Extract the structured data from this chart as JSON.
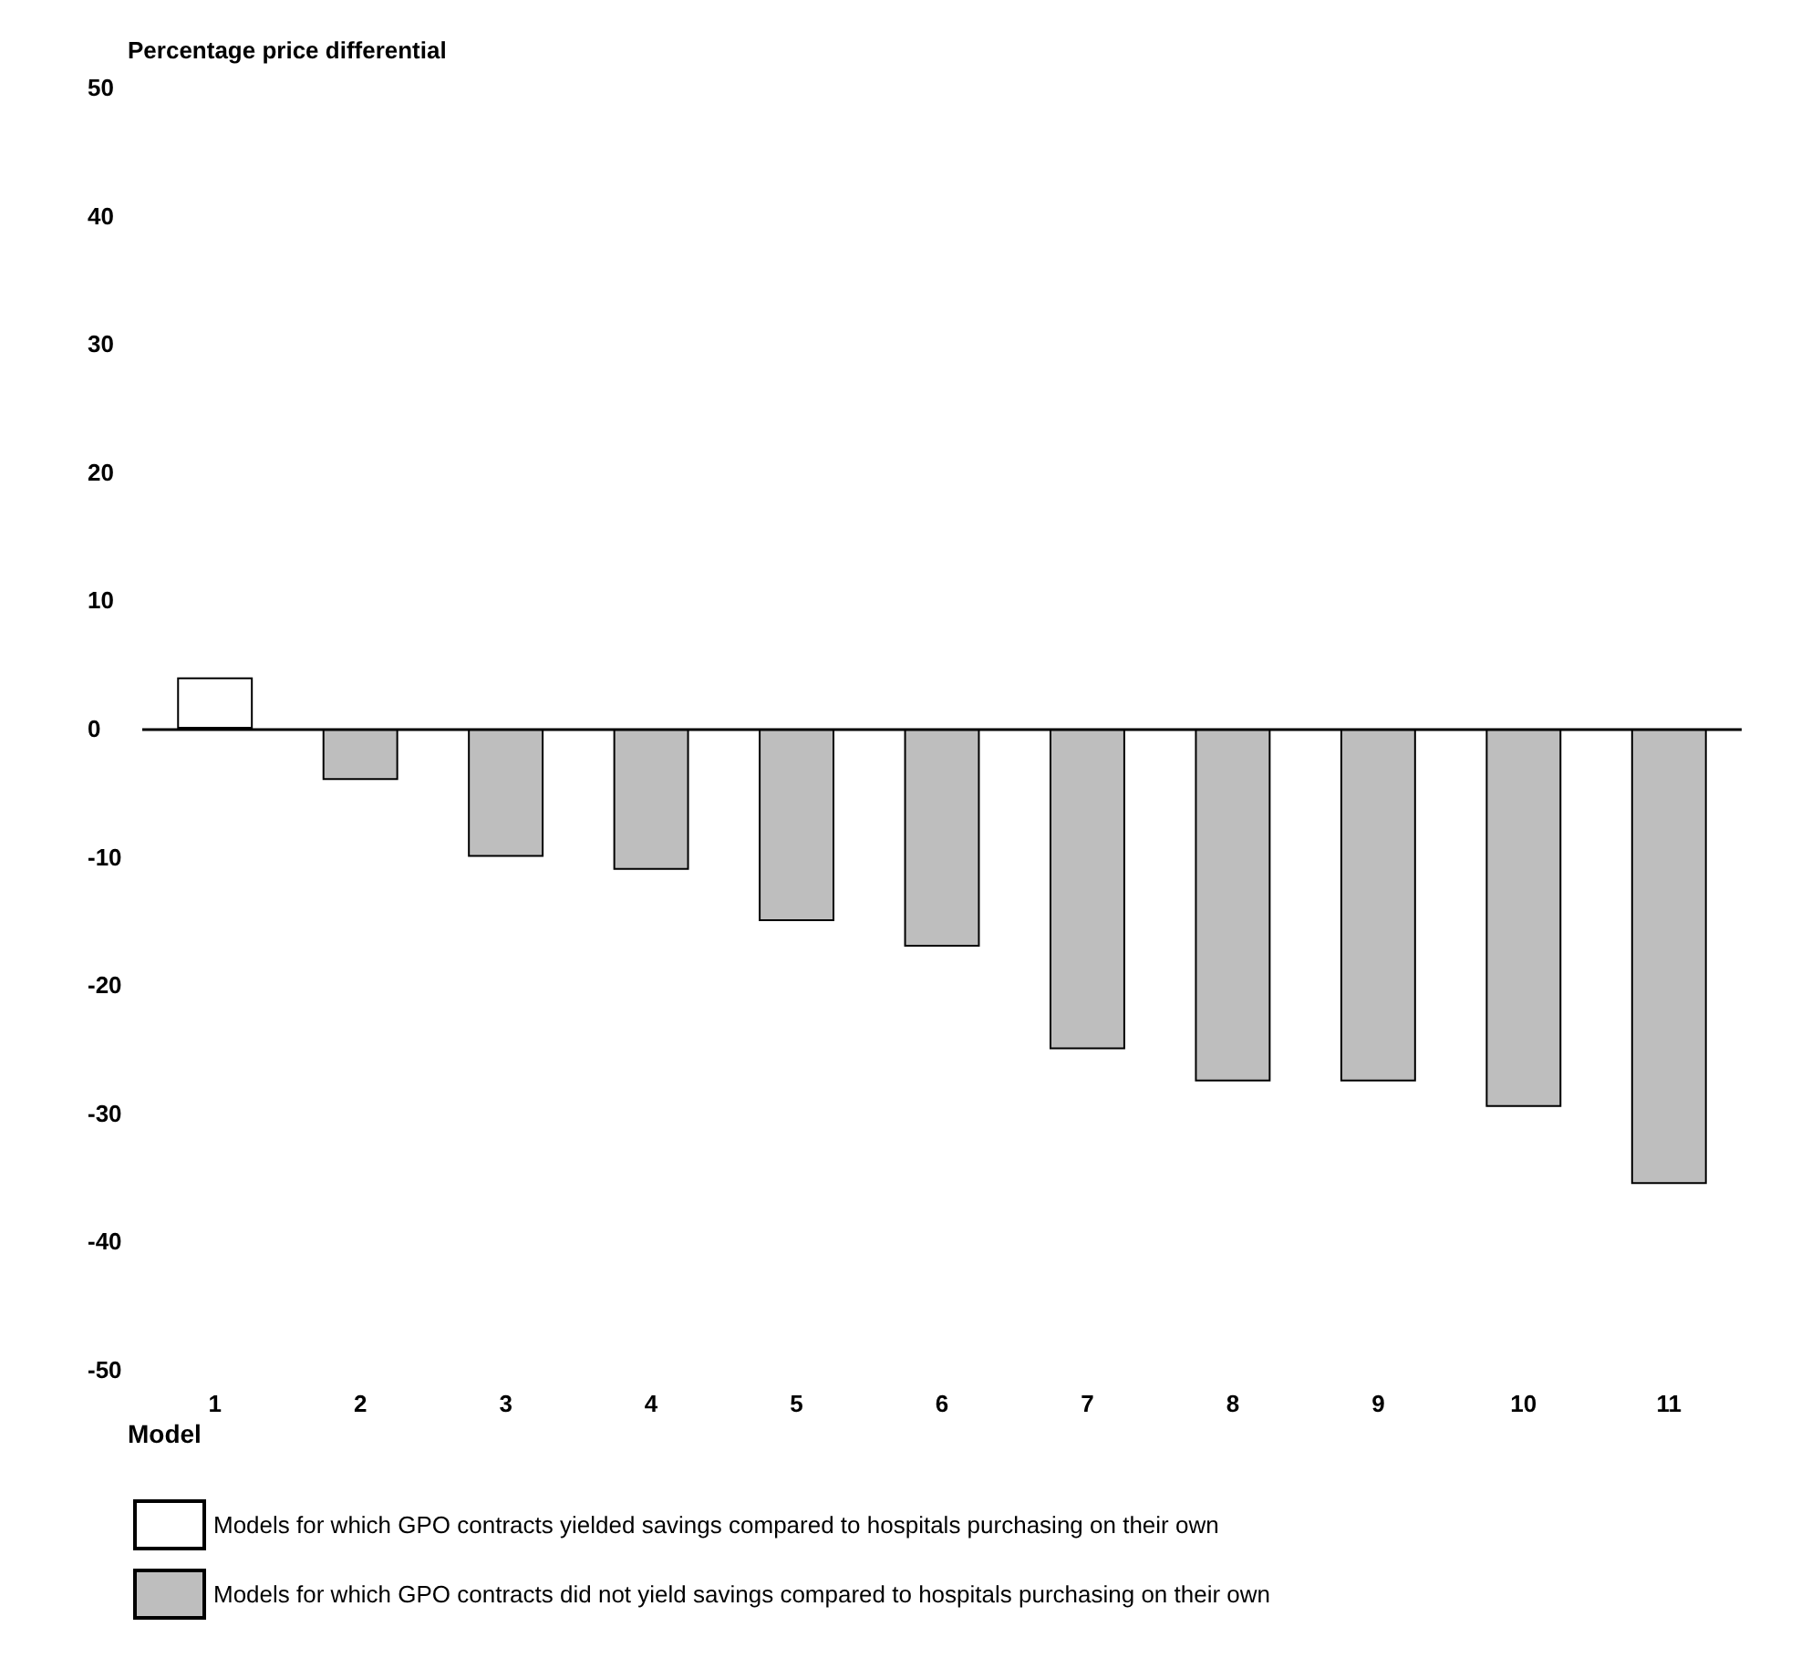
{
  "chart_data": {
    "type": "bar",
    "ylabel": "Percentage price differential",
    "xlabel": "Model",
    "categories": [
      "1",
      "2",
      "3",
      "4",
      "5",
      "6",
      "7",
      "8",
      "9",
      "10",
      "11"
    ],
    "series": [
      {
        "name": "Models for which GPO contracts yielded savings compared to hospitals purchasing on their own",
        "color": "#ffffff",
        "values": [
          4,
          null,
          null,
          null,
          null,
          null,
          null,
          null,
          null,
          null,
          null
        ]
      },
      {
        "name": "Models for which GPO contracts did not yield savings compared to hospitals purchasing on their own",
        "color": "#bebebe",
        "values": [
          null,
          -4,
          -10,
          -11,
          -15,
          -17,
          -25,
          -27.5,
          -27.5,
          -29.5,
          -35.5
        ]
      }
    ],
    "stacked": true,
    "ylim": [
      -50,
      50
    ],
    "yticks": [
      -50,
      -40,
      -30,
      -20,
      -10,
      0,
      10,
      20,
      30,
      40,
      50
    ],
    "ref_lines": [
      {
        "axis": "y",
        "value": 0,
        "color": "#000000"
      }
    ],
    "legend": "bottom left"
  }
}
